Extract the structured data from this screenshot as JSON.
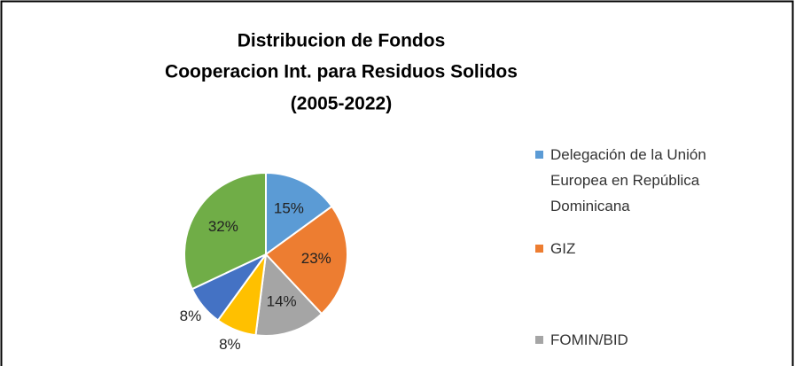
{
  "chart_data": {
    "type": "pie",
    "title": [
      "Distribucion de Fondos",
      "Cooperacion Int. para Residuos Solidos",
      "(2005-2022)"
    ],
    "categories": [
      "Delegación de la Unión Europea en República Dominicana",
      "GIZ",
      "FOMIN/BID",
      null,
      null,
      null
    ],
    "values": [
      15,
      23,
      14,
      8,
      8,
      32
    ],
    "value_labels": [
      "15%",
      "23%",
      "14%",
      "8%",
      "8%",
      "32%"
    ],
    "colors": [
      "#5b9bd5",
      "#ed7d31",
      "#a5a5a5",
      "#ffc000",
      "#4472c4",
      "#70ad47"
    ]
  }
}
